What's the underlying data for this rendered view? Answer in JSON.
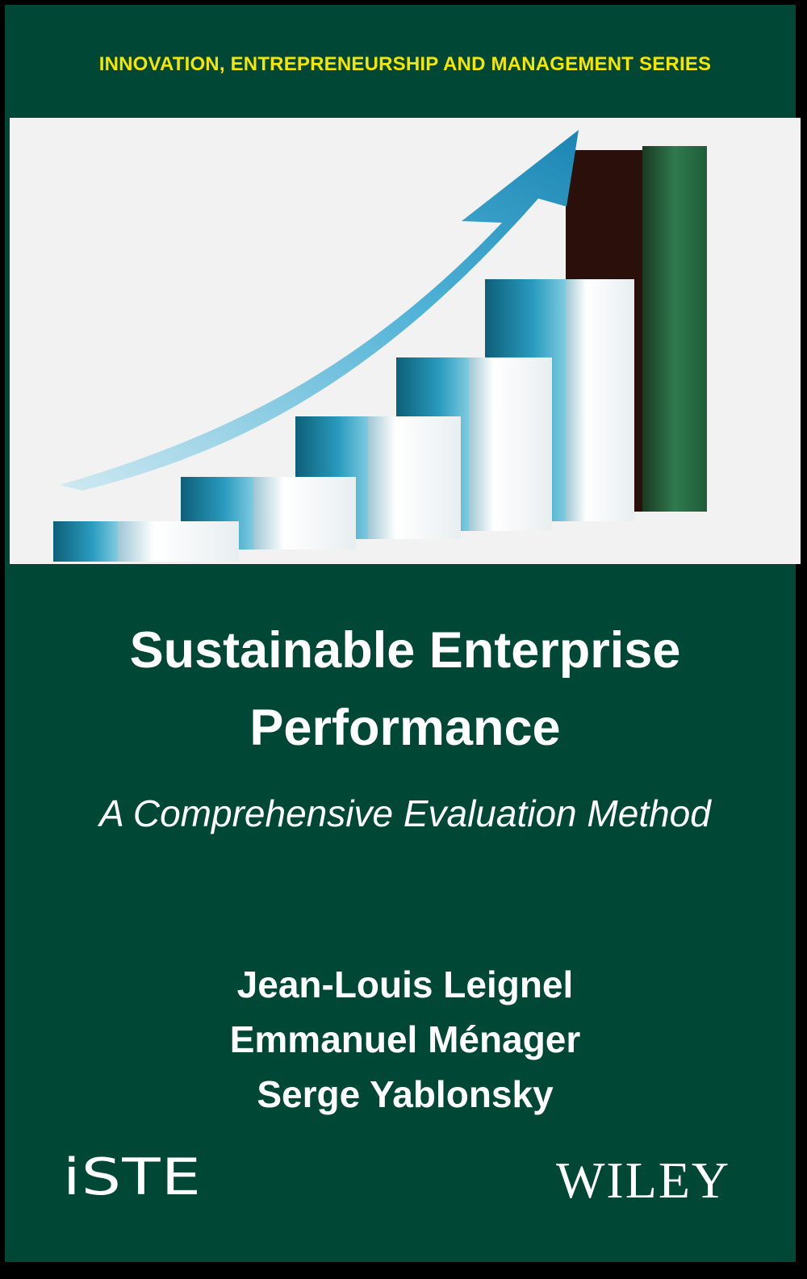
{
  "cover": {
    "series": "INNOVATION, ENTREPRENEURSHIP AND MANAGEMENT SERIES",
    "title_line1": "Sustainable Enterprise",
    "title_line2": "Performance",
    "subtitle": "A Comprehensive Evaluation Method",
    "authors": [
      "Jean-Louis Leignel",
      "Emmanuel Ménager",
      "Serge Yablonsky"
    ],
    "publisher_logos": [
      "iSTE",
      "WILEY"
    ],
    "colors": {
      "background": "#004835",
      "series_text": "#f5e600",
      "text": "#ffffff"
    }
  }
}
